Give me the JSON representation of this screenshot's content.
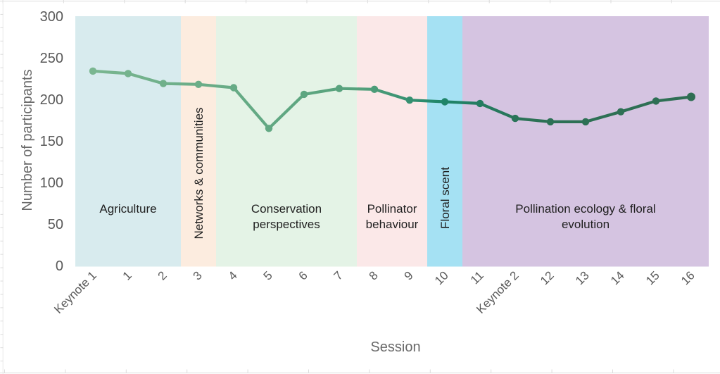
{
  "chart_data": {
    "type": "line",
    "title": "",
    "xlabel": "Session",
    "ylabel": "Number of participants",
    "categories": [
      "Keynote 1",
      "1",
      "2",
      "3",
      "4",
      "5",
      "6",
      "7",
      "8",
      "9",
      "10",
      "11",
      "Keynote 2",
      "12",
      "13",
      "14",
      "15",
      "16"
    ],
    "series": [
      {
        "name": "Number of participants",
        "values": [
          234,
          231,
          219,
          218,
          214,
          165,
          206,
          213,
          212,
          199,
          197,
          195,
          177,
          173,
          173,
          185,
          198,
          203
        ]
      }
    ],
    "ylim": [
      0,
      300
    ],
    "yticks": [
      0,
      50,
      100,
      150,
      200,
      250,
      300
    ],
    "grid": false,
    "legend": "none",
    "line_style": {
      "width": 4.2,
      "marker_radius": 5.2,
      "last_marker_radius": 6,
      "gradient_stops": [
        {
          "offset": 0,
          "color": "#7cb791"
        },
        {
          "offset": 0.45,
          "color": "#55a17c"
        },
        {
          "offset": 0.58,
          "color": "#1f8569"
        },
        {
          "offset": 0.72,
          "color": "#2c7155"
        },
        {
          "offset": 1,
          "color": "#2f6e53"
        }
      ]
    },
    "regions": [
      {
        "label": "Agriculture",
        "label_lines": [
          "Agriculture"
        ],
        "from": -0.5,
        "to": 2.5,
        "color": "#d8ebee",
        "vertical_label": false
      },
      {
        "label": "Networks & communities",
        "label_lines": [
          "Networks & communities"
        ],
        "from": 2.5,
        "to": 3.5,
        "color": "#fcecdf",
        "vertical_label": true,
        "label_cy": 246
      },
      {
        "label": "Conservation perspectives",
        "label_lines": [
          "Conservation",
          "perspectives"
        ],
        "from": 3.5,
        "to": 7.5,
        "color": "#e4f3e6",
        "vertical_label": false
      },
      {
        "label": "Pollinator behaviour",
        "label_lines": [
          "Pollinator",
          "behaviour"
        ],
        "from": 7.5,
        "to": 9.5,
        "color": "#fbe8e8",
        "vertical_label": false
      },
      {
        "label": "Floral scent",
        "label_lines": [
          "Floral scent"
        ],
        "from": 9.5,
        "to": 10.5,
        "color": "#a5e1f3",
        "vertical_label": true,
        "label_cy": 281
      },
      {
        "label": "Pollination ecology & floral evolution",
        "label_lines": [
          "Pollination ecology & floral",
          "evolution"
        ],
        "from": 10.5,
        "to": 17.5,
        "color": "#d5c4e1",
        "vertical_label": false
      }
    ]
  }
}
